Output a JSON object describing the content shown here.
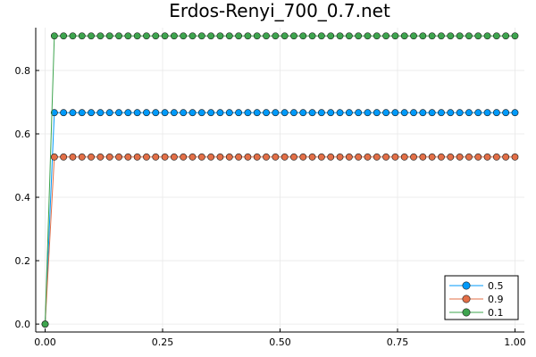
{
  "chart_data": {
    "type": "line",
    "title": "Erdos-Renyi_700_0.7.net",
    "xlabel": "",
    "ylabel": "",
    "xlim": [
      -0.02,
      1.02
    ],
    "ylim": [
      -0.025,
      0.935
    ],
    "x_ticks": [
      0.0,
      0.25,
      0.5,
      0.75,
      1.0
    ],
    "x_tick_labels": [
      "0.00",
      "0.25",
      "0.50",
      "0.75",
      "1.00"
    ],
    "y_ticks": [
      0.0,
      0.2,
      0.4,
      0.6,
      0.8
    ],
    "y_tick_labels": [
      "0.0",
      "0.2",
      "0.4",
      "0.6",
      "0.8"
    ],
    "grid": true,
    "legend_position": "bottom-right",
    "x": [
      0.0,
      0.0196,
      0.0392,
      0.0588,
      0.0784,
      0.098,
      0.1176,
      0.1373,
      0.1569,
      0.1765,
      0.1961,
      0.2157,
      0.2353,
      0.2549,
      0.2745,
      0.2941,
      0.3137,
      0.3333,
      0.3529,
      0.3725,
      0.3922,
      0.4118,
      0.4314,
      0.451,
      0.4706,
      0.4902,
      0.5098,
      0.5294,
      0.549,
      0.5686,
      0.5882,
      0.6078,
      0.6275,
      0.6471,
      0.6667,
      0.6863,
      0.7059,
      0.7255,
      0.7451,
      0.7647,
      0.7843,
      0.8039,
      0.8235,
      0.8431,
      0.8627,
      0.8824,
      0.902,
      0.9216,
      0.9412,
      0.9608,
      0.9804,
      1.0
    ],
    "series": [
      {
        "name": "0.5",
        "color": "#009AFA",
        "initial": 0.0,
        "plateau": 0.667
      },
      {
        "name": "0.9",
        "color": "#E36F47",
        "initial": 0.0,
        "plateau": 0.527
      },
      {
        "name": "0.1",
        "color": "#3EA44E",
        "initial": 0.0,
        "plateau": 0.909
      }
    ]
  }
}
